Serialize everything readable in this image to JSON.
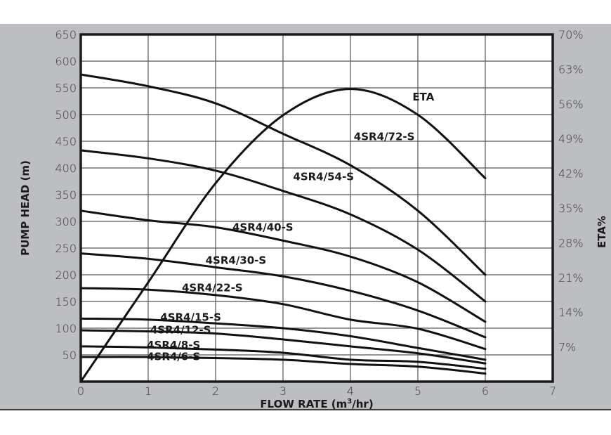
{
  "chart_data": {
    "type": "line",
    "title": "",
    "xlabel": "FLOW RATE (m³/hr)",
    "xlabel_parts": {
      "pre": "FLOW RATE (m",
      "sup": "3",
      "post": "/hr)"
    },
    "ylabel": "PUMP HEAD (m)",
    "y2label": "ETA%",
    "xlim": [
      0,
      7
    ],
    "ylim": [
      0,
      650
    ],
    "y2lim": [
      0,
      70
    ],
    "grid": true,
    "legend": "inline labels",
    "x_ticks": [
      "0",
      "1",
      "2",
      "3",
      "4",
      "5",
      "6",
      "7"
    ],
    "y_ticks": [
      "50",
      "100",
      "150",
      "200",
      "250",
      "300",
      "350",
      "400",
      "450",
      "500",
      "550",
      "600",
      "650"
    ],
    "y2_ticks": [
      "7%",
      "14%",
      "21%",
      "28%",
      "35%",
      "42%",
      "49%",
      "56%",
      "63%",
      "70%"
    ],
    "x": [
      0,
      1,
      2,
      3,
      4,
      5,
      6
    ],
    "series": [
      {
        "name": "4SR4/72-S",
        "axis": "left",
        "values": [
          575,
          553,
          521,
          464,
          405,
          320,
          200
        ],
        "label_at": [
          4.05,
          460
        ]
      },
      {
        "name": "4SR4/54-S",
        "axis": "left",
        "values": [
          433,
          418,
          395,
          357,
          313,
          247,
          150
        ],
        "label_at": [
          3.15,
          385
        ]
      },
      {
        "name": "4SR4/40-S",
        "axis": "left",
        "values": [
          320,
          302,
          289,
          264,
          234,
          186,
          112
        ],
        "label_at": [
          2.25,
          290
        ]
      },
      {
        "name": "4SR4/30-S",
        "axis": "left",
        "values": [
          240,
          230,
          214,
          197,
          170,
          133,
          83
        ],
        "label_at": [
          1.85,
          228
        ]
      },
      {
        "name": "4SR4/22-S",
        "axis": "left",
        "values": [
          175,
          172,
          162,
          145,
          116,
          99,
          61
        ],
        "label_at": [
          1.5,
          177
        ]
      },
      {
        "name": "4SR4/15-S",
        "axis": "left",
        "values": [
          118,
          116,
          109,
          100,
          85,
          63,
          41
        ],
        "label_at": [
          1.18,
          122
        ]
      },
      {
        "name": "4SR4/12-S",
        "axis": "left",
        "values": [
          96,
          94,
          90,
          79,
          66,
          53,
          34
        ],
        "label_at": [
          1.03,
          98
        ]
      },
      {
        "name": "4SR4/8-S",
        "axis": "left",
        "values": [
          66,
          64,
          60,
          54,
          41,
          37,
          24
        ],
        "label_at": [
          0.98,
          70
        ]
      },
      {
        "name": "4SR4/6-S",
        "axis": "left",
        "values": [
          46,
          46,
          44,
          41,
          33,
          28,
          15
        ],
        "label_at": [
          0.98,
          48
        ]
      },
      {
        "name": "ETA",
        "axis": "right",
        "values": [
          0,
          20,
          40,
          53.7,
          59,
          53.8,
          41
        ],
        "label_at": [
          4.92,
          57.5
        ]
      }
    ]
  }
}
